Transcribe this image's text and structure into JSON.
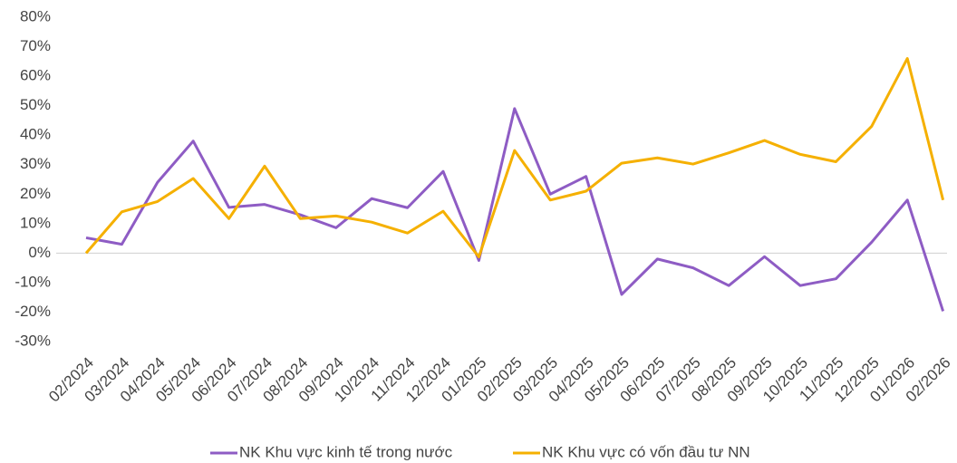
{
  "chart_data": {
    "type": "line",
    "categories": [
      "02/2024",
      "03/2024",
      "04/2024",
      "05/2024",
      "06/2024",
      "07/2024",
      "08/2024",
      "09/2024",
      "10/2024",
      "11/2024",
      "12/2024",
      "01/2025",
      "02/2025",
      "03/2025",
      "04/2025",
      "05/2025",
      "06/2025",
      "07/2025",
      "08/2025",
      "09/2025",
      "10/2025",
      "11/2025",
      "12/2025",
      "01/2026",
      "02/2026"
    ],
    "series": [
      {
        "name": "NK Khu vực kinh tế trong nước",
        "color": "#8e5cc4",
        "values": [
          5.2,
          3,
          24,
          38,
          15.5,
          16.5,
          13,
          8.6,
          18.5,
          15.4,
          27.7,
          -2.5,
          49,
          20,
          26,
          -14,
          -2,
          -5,
          -11,
          -1.2,
          -11,
          -8.7,
          3.7,
          18,
          -19.7
        ]
      },
      {
        "name": "NK Khu vực có vốn đầu tư NN",
        "color": "#f5b000",
        "values": [
          0,
          14,
          17.5,
          25.3,
          11.7,
          29.5,
          11.7,
          12.6,
          10.5,
          6.8,
          14.2,
          -1.3,
          34.8,
          18,
          21,
          30.5,
          32.3,
          30.2,
          34,
          38.2,
          33.5,
          31,
          43,
          66,
          18
        ]
      }
    ],
    "ylim": [
      -30,
      80
    ],
    "yticks": [
      {
        "value": -30,
        "label": "-30%"
      },
      {
        "value": -20,
        "label": "-20%"
      },
      {
        "value": -10,
        "label": "-10%"
      },
      {
        "value": 0,
        "label": "0%"
      },
      {
        "value": 10,
        "label": "10%"
      },
      {
        "value": 20,
        "label": "20%"
      },
      {
        "value": 30,
        "label": "30%"
      },
      {
        "value": 40,
        "label": "40%"
      },
      {
        "value": 50,
        "label": "50%"
      },
      {
        "value": 60,
        "label": "60%"
      },
      {
        "value": 70,
        "label": "70%"
      },
      {
        "value": 80,
        "label": "80%"
      }
    ],
    "grid": false,
    "legend": "bottom"
  }
}
